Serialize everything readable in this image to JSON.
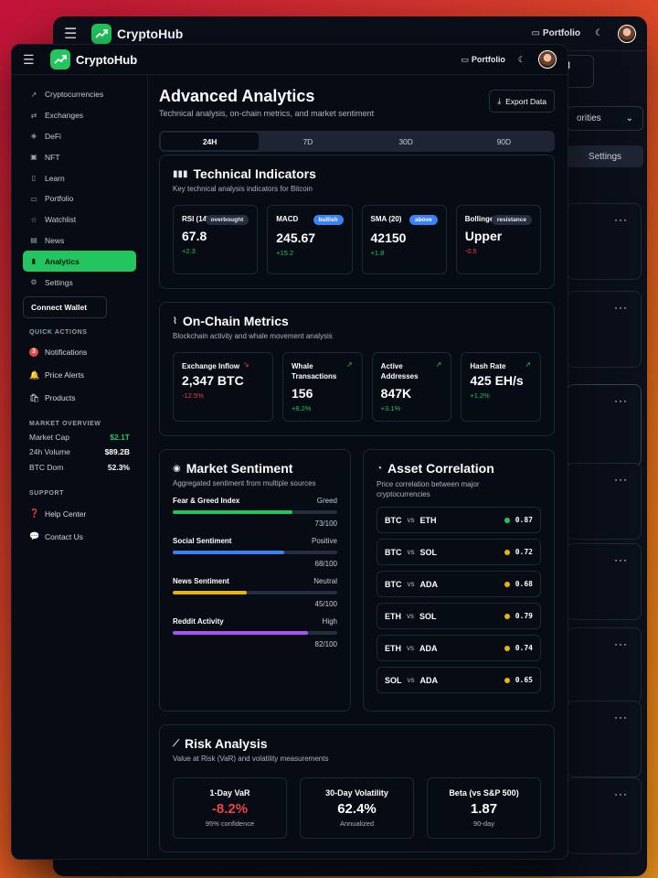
{
  "app": {
    "name": "CryptoHub",
    "portfolio_label": "Portfolio"
  },
  "background_window": {
    "mark_all_read": "Mark All Read",
    "priorities_select": "orities",
    "settings_tab": "Settings",
    "more_label": "···"
  },
  "sidebar": {
    "items": [
      {
        "label": "Cryptocurrencies",
        "icon": "trend-icon"
      },
      {
        "label": "Exchanges",
        "icon": "exchange-icon"
      },
      {
        "label": "DeFi",
        "icon": "defi-icon"
      },
      {
        "label": "NFT",
        "icon": "image-icon"
      },
      {
        "label": "Learn",
        "icon": "book-icon"
      },
      {
        "label": "Portfolio",
        "icon": "wallet-icon"
      },
      {
        "label": "Watchlist",
        "icon": "star-icon"
      },
      {
        "label": "News",
        "icon": "news-icon"
      },
      {
        "label": "Analytics",
        "icon": "chart-icon"
      },
      {
        "label": "Settings",
        "icon": "gear-icon"
      }
    ],
    "connect_wallet": "Connect Wallet",
    "quick_actions_title": "QUICK ACTIONS",
    "quick_actions": [
      {
        "label": "Notifications",
        "glyph": "3"
      },
      {
        "label": "Price Alerts",
        "glyph": "🔔"
      },
      {
        "label": "Products",
        "glyph": "🛍"
      }
    ],
    "market_overview_title": "MARKET OVERVIEW",
    "market_overview": [
      {
        "label": "Market Cap",
        "value": "$2.1T"
      },
      {
        "label": "24h Volume",
        "value": "$89.2B"
      },
      {
        "label": "BTC Dom",
        "value": "52.3%"
      }
    ],
    "support_title": "SUPPORT",
    "support": [
      {
        "label": "Help Center",
        "glyph": "❓"
      },
      {
        "label": "Contact Us",
        "glyph": "💬"
      }
    ]
  },
  "header": {
    "title": "Advanced Analytics",
    "subtitle": "Technical analysis, on-chain metrics, and market sentiment",
    "export_label": "Export Data"
  },
  "tabs": [
    "24H",
    "7D",
    "30D",
    "90D"
  ],
  "technical": {
    "title": "Technical Indicators",
    "subtitle": "Key technical analysis indicators for Bitcoin",
    "tiles": [
      {
        "label": "RSI (14)",
        "badge": "overbought",
        "value": "67.8",
        "change": "+2.3"
      },
      {
        "label": "MACD",
        "badge": "bullish",
        "value": "245.67",
        "change": "+15.2"
      },
      {
        "label": "SMA (20)",
        "badge": "above",
        "value": "42150",
        "change": "+1.8"
      },
      {
        "label": "Bollinger Bands",
        "badge": "resistance",
        "value": "Upper",
        "change": "-0.5"
      }
    ]
  },
  "onchain": {
    "title": "On-Chain Metrics",
    "subtitle": "Blockchain activity and whale movement analysis",
    "tiles": [
      {
        "label": "Exchange Inflow",
        "value": "2,347 BTC",
        "change": "-12.5%"
      },
      {
        "label": "Whale Transactions",
        "value": "156",
        "change": "+8.2%"
      },
      {
        "label": "Active Addresses",
        "value": "847K",
        "change": "+3.1%"
      },
      {
        "label": "Hash Rate",
        "value": "425 EH/s",
        "change": "+1.2%"
      }
    ]
  },
  "sentiment": {
    "title": "Market Sentiment",
    "subtitle": "Aggregated sentiment from multiple sources",
    "rows": [
      {
        "name": "Fear & Greed Index",
        "state": "Greed",
        "score": "73/100",
        "value": 73,
        "color": "#22c55e"
      },
      {
        "name": "Social Sentiment",
        "state": "Positive",
        "score": "68/100",
        "value": 68,
        "color": "#3b82f6"
      },
      {
        "name": "News Sentiment",
        "state": "Neutral",
        "score": "45/100",
        "value": 45,
        "color": "#eab308"
      },
      {
        "name": "Reddit Activity",
        "state": "High",
        "score": "82/100",
        "value": 82,
        "color": "#a855f7"
      }
    ]
  },
  "correlation": {
    "title": "Asset Correlation",
    "subtitle": "Price correlation between major cryptocurrencies",
    "vs_label": "vs",
    "rows": [
      {
        "a": "BTC",
        "b": "ETH",
        "value": "0.87",
        "color": "#22c55e"
      },
      {
        "a": "BTC",
        "b": "SOL",
        "value": "0.72",
        "color": "#eab308"
      },
      {
        "a": "BTC",
        "b": "ADA",
        "value": "0.68",
        "color": "#eab308"
      },
      {
        "a": "ETH",
        "b": "SOL",
        "value": "0.79",
        "color": "#eab308"
      },
      {
        "a": "ETH",
        "b": "ADA",
        "value": "0.74",
        "color": "#eab308"
      },
      {
        "a": "SOL",
        "b": "ADA",
        "value": "0.65",
        "color": "#eab308"
      }
    ]
  },
  "risk": {
    "title": "Risk Analysis",
    "subtitle": "Value at Risk (VaR) and volatility measurements",
    "tiles": [
      {
        "title": "1-Day VaR",
        "value": "-8.2%",
        "desc": "95% confidence"
      },
      {
        "title": "30-Day Volatility",
        "value": "62.4%",
        "desc": "Annualized"
      },
      {
        "title": "Beta (vs S&P 500)",
        "value": "1.87",
        "desc": "90-day"
      }
    ]
  }
}
